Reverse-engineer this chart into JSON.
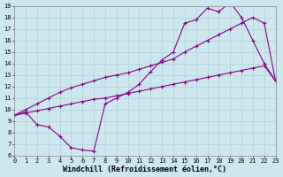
{
  "xlabel": "Windchill (Refroidissement éolien,°C)",
  "xlim": [
    0,
    23
  ],
  "ylim": [
    6,
    19
  ],
  "xticks": [
    0,
    1,
    2,
    3,
    4,
    5,
    6,
    7,
    8,
    9,
    10,
    11,
    12,
    13,
    14,
    15,
    16,
    17,
    18,
    19,
    20,
    21,
    22,
    23
  ],
  "yticks": [
    6,
    7,
    8,
    9,
    10,
    11,
    12,
    13,
    14,
    15,
    16,
    17,
    18,
    19
  ],
  "bg_color": "#cce8ee",
  "grid_color": "#b0d0d8",
  "line_color": "#880088",
  "curve1_x": [
    0,
    1,
    2,
    3,
    4,
    5,
    6,
    7,
    8,
    9,
    10,
    11,
    12,
    13,
    14,
    15,
    16,
    17,
    18,
    19,
    20,
    21,
    22,
    23
  ],
  "curve1_y": [
    9.5,
    9.8,
    8.7,
    8.5,
    7.7,
    6.7,
    6.5,
    6.4,
    10.5,
    11.0,
    11.5,
    12.2,
    13.3,
    14.3,
    15.0,
    17.5,
    17.8,
    18.8,
    18.5,
    19.3,
    18.0,
    16.0,
    14.0,
    12.5
  ],
  "curve2_x": [
    0,
    1,
    2,
    3,
    4,
    5,
    6,
    7,
    8,
    9,
    10,
    11,
    12,
    13,
    14,
    15,
    16,
    17,
    18,
    19,
    20,
    21,
    22,
    23
  ],
  "curve2_y": [
    9.5,
    9.7,
    9.9,
    10.1,
    10.3,
    10.5,
    10.7,
    10.9,
    11.0,
    11.2,
    11.4,
    11.6,
    11.8,
    12.0,
    12.2,
    12.4,
    12.6,
    12.8,
    13.0,
    13.2,
    13.4,
    13.6,
    13.8,
    12.5
  ],
  "curve3_x": [
    0,
    1,
    2,
    3,
    4,
    5,
    6,
    7,
    8,
    9,
    10,
    11,
    12,
    13,
    14,
    15,
    16,
    17,
    18,
    19,
    20,
    21,
    22,
    23
  ],
  "curve3_y": [
    9.5,
    10.0,
    10.5,
    11.0,
    11.5,
    11.9,
    12.2,
    12.5,
    12.8,
    13.0,
    13.2,
    13.5,
    13.8,
    14.1,
    14.4,
    15.0,
    15.5,
    16.0,
    16.5,
    17.0,
    17.5,
    18.0,
    17.5,
    12.5
  ],
  "tick_fontsize": 5,
  "xlabel_fontsize": 6
}
